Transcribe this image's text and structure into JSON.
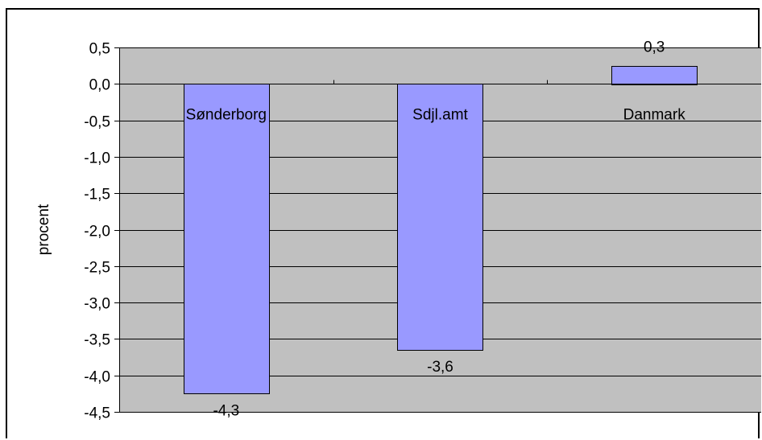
{
  "chart_data": {
    "type": "bar",
    "title": "",
    "xlabel": "",
    "ylabel": "procent",
    "categories": [
      "Sønderborg",
      "Sdjl.amt",
      "Danmark"
    ],
    "values": [
      -4.25,
      -3.65,
      0.25
    ],
    "data_labels": [
      "-4,3",
      "-3,6",
      "0,3"
    ],
    "ylim": [
      -4.5,
      0.5
    ],
    "yticks": [
      0.5,
      0.0,
      -0.5,
      -1.0,
      -1.5,
      -2.0,
      -2.5,
      -3.0,
      -3.5,
      -4.0,
      -4.5
    ],
    "ytick_labels": [
      "0,5",
      "0,0",
      "-0,5",
      "-1,0",
      "-1,5",
      "-2,0",
      "-2,5",
      "-3,0",
      "-3,5",
      "-4,0",
      "-4,5"
    ],
    "grid": true,
    "legend": "none",
    "colors": {
      "plot_background": "#c0c0c0",
      "bar_fill": "#9999ff",
      "bar_stroke": "#000000",
      "gridline": "#000000"
    }
  }
}
